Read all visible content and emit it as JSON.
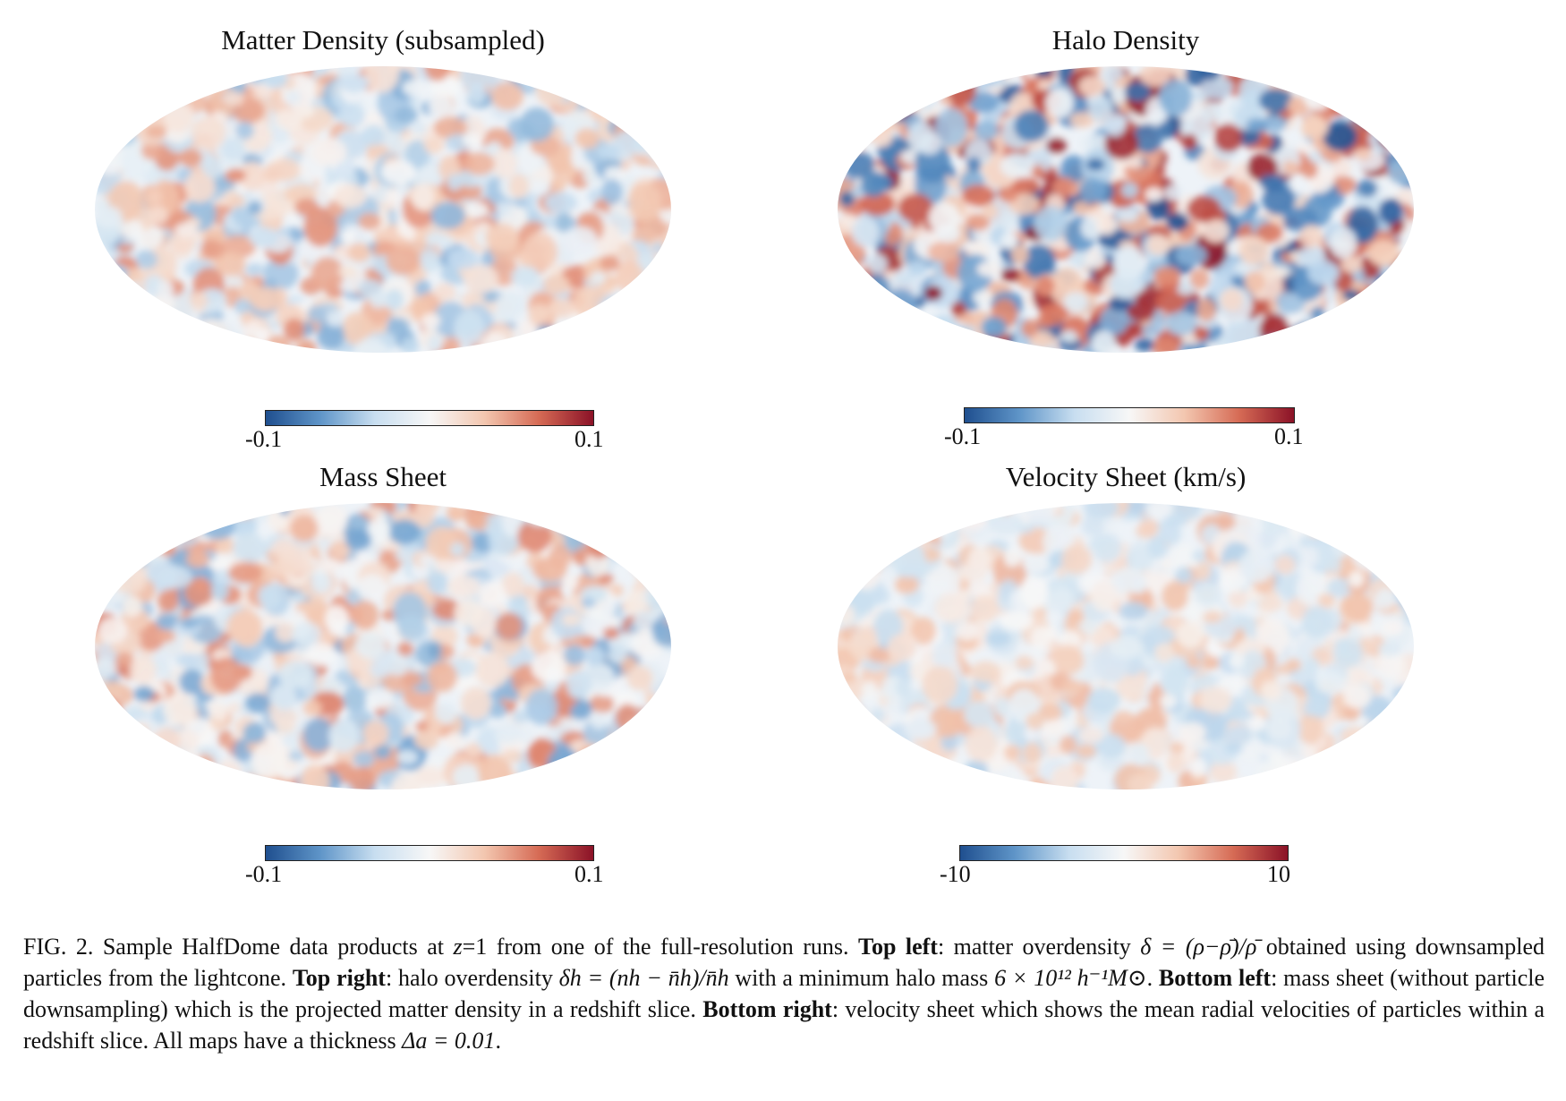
{
  "figure": {
    "panels": [
      {
        "id": "matter",
        "title": "Matter Density (subsampled)",
        "cbar_min": "-0.1",
        "cbar_max": "0.1",
        "amplitude": 0.55,
        "seed": 11
      },
      {
        "id": "halo",
        "title": "Halo Density",
        "cbar_min": "-0.1",
        "cbar_max": "0.1",
        "amplitude": 1.0,
        "seed": 29
      },
      {
        "id": "mass",
        "title": "Mass Sheet",
        "cbar_min": "-0.1",
        "cbar_max": "0.1",
        "amplitude": 0.6,
        "seed": 47
      },
      {
        "id": "velocity",
        "title": "Velocity Sheet (km/s)",
        "cbar_min": "-10",
        "cbar_max": "10",
        "amplitude": 0.4,
        "seed": 83
      }
    ],
    "colormap": [
      "#1f4f8f",
      "#5f95c8",
      "#c8def0",
      "#f7f7f7",
      "#f3c7b0",
      "#d66b55",
      "#8b1227"
    ]
  },
  "caption": {
    "label": "FIG. 2.",
    "t1": "Sample HalfDome data products at ",
    "z_var": "z",
    "z_val": "=1",
    "t2": " from one of the full-resolution runs. ",
    "b_top_left": "Top left",
    "t3": ": matter overdensity ",
    "eq1": "δ = (ρ−ρ̄)/ρ̄",
    "t4": " obtained using downsampled particles from the lightcone. ",
    "b_top_right": "Top right",
    "t5": ": halo overdensity ",
    "eq2": "δh = (nh − n̄h)/n̄h",
    "t6": " with a minimum halo mass ",
    "eq3": "6 × 10¹² h⁻¹M⊙",
    "t7": ". ",
    "b_bottom_left": "Bottom left",
    "t8": ": mass sheet (without particle downsampling) which is the projected matter density in a redshift slice. ",
    "b_bottom_right": "Bottom right",
    "t9": ": velocity sheet which shows the mean radial velocities of particles within a redshift slice. All maps have a thickness ",
    "eq4": "Δa = 0.01",
    "t10": "."
  }
}
